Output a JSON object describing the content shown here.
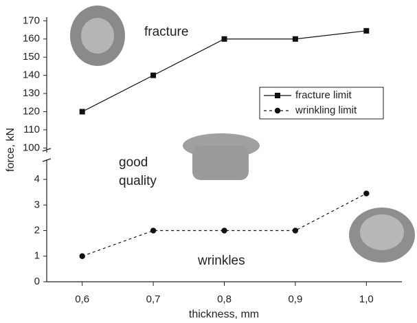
{
  "chart_data": {
    "type": "line",
    "xlabel": "thickness, mm",
    "ylabel": "force, kN",
    "annotations": [
      "fracture",
      "good",
      "quality",
      "wrinkles"
    ],
    "x": [
      0.6,
      0.7,
      0.8,
      0.9,
      1.0
    ],
    "xlim": [
      0.55,
      1.05
    ],
    "xticks": [
      {
        "value": 0.6,
        "label": "0,6"
      },
      {
        "value": 0.7,
        "label": "0,7"
      },
      {
        "value": 0.8,
        "label": "0,8"
      },
      {
        "value": 0.9,
        "label": "0,9"
      },
      {
        "value": 1.0,
        "label": "1,0"
      }
    ],
    "ylim": [
      0,
      4.78
    ],
    "yticks": [
      0,
      1,
      2,
      3,
      4
    ],
    "y2lim": [
      97.5,
      172
    ],
    "y2ticks": [
      100,
      110,
      120,
      130,
      140,
      150,
      160,
      170
    ],
    "legend": "upper right",
    "series": [
      {
        "name": "fracture limit",
        "color": "#111111",
        "marker": "square",
        "dash": false,
        "axis": "y2",
        "values": [
          120,
          140,
          160,
          160,
          164.5
        ]
      },
      {
        "name": "wrinkling limit",
        "color": "#111111",
        "marker": "circle",
        "dash": true,
        "values": [
          1,
          2,
          2,
          2,
          3.45
        ]
      }
    ]
  }
}
